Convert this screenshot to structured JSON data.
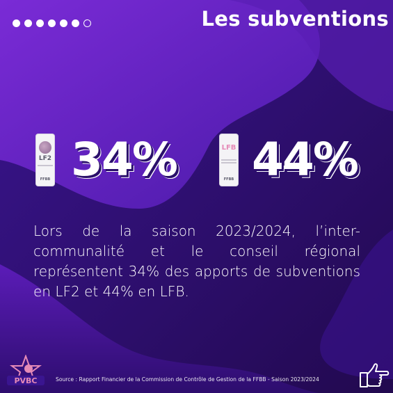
{
  "header": {
    "title": "Les subventions",
    "progress_dots": {
      "total": 7,
      "filled": 6
    }
  },
  "stats": [
    {
      "badge_label": "LF2",
      "badge_org": "FFBB",
      "value": "34%"
    },
    {
      "badge_label": "LFB",
      "badge_org": "FFBB",
      "value": "44%"
    }
  ],
  "body": {
    "text": "Lors de la saison 2023/2024, l’inter-communalité et le conseil régional représentent 34% des apports de subventions en LF2 et 44% en LFB."
  },
  "footer": {
    "source": "Source : Rapport Financier de la Commission de Contrôle de Gestion de la FFBB - Saison 2023/2024",
    "logo_text": "PVBC",
    "next_icon": "pointing-hand-icon"
  },
  "colors": {
    "background_dark": "#2a0f6b",
    "background_light": "#6a23c8",
    "accent_pink": "#e58ab7",
    "text": "#ffffff"
  }
}
